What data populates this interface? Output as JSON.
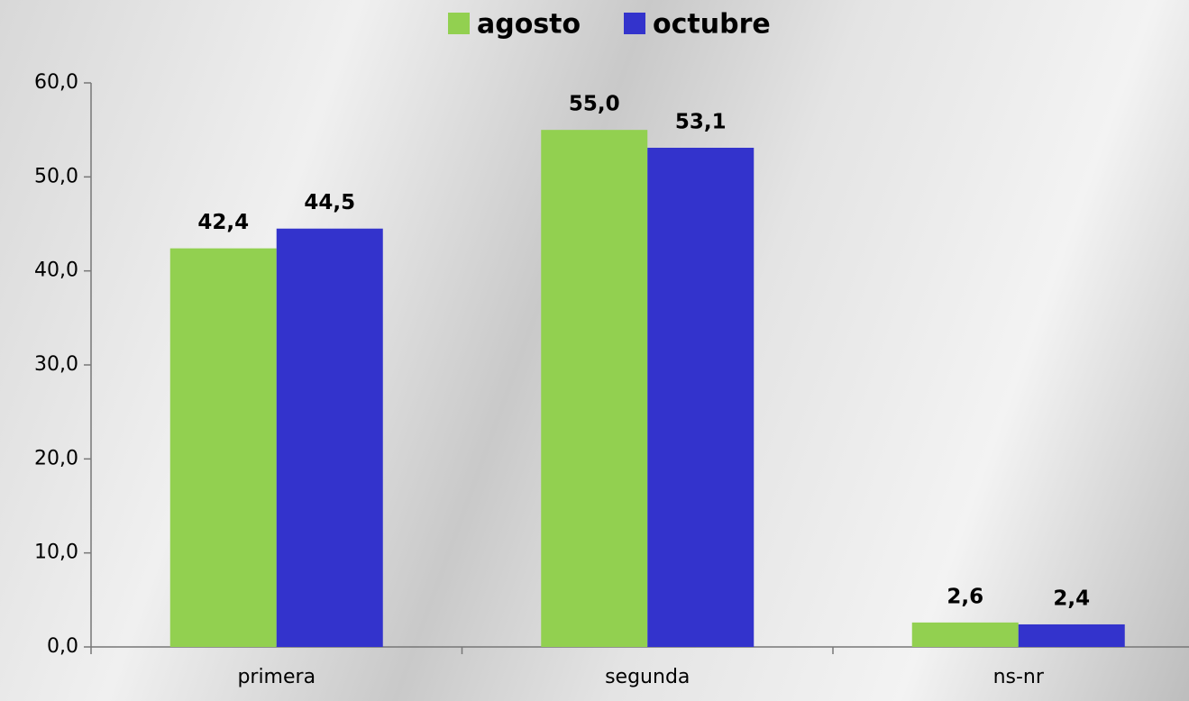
{
  "chart_data": {
    "type": "bar",
    "categories": [
      "primera",
      "segunda",
      "ns-nr"
    ],
    "series": [
      {
        "name": "agosto",
        "color": "#92d050",
        "values": [
          42.4,
          55.0,
          2.6
        ],
        "value_labels": [
          "42,4",
          "55,0",
          "2,6"
        ]
      },
      {
        "name": "octubre",
        "color": "#3333cc",
        "values": [
          44.5,
          53.1,
          2.4
        ],
        "value_labels": [
          "44,5",
          "53,1",
          "2,4"
        ]
      }
    ],
    "ylim": [
      0,
      60
    ],
    "yticks": [
      {
        "value": 0,
        "label": "0,0"
      },
      {
        "value": 10,
        "label": "10,0"
      },
      {
        "value": 20,
        "label": "20,0"
      },
      {
        "value": 30,
        "label": "30,0"
      },
      {
        "value": 40,
        "label": "40,0"
      },
      {
        "value": 50,
        "label": "50,0"
      },
      {
        "value": 60,
        "label": "60,0"
      }
    ],
    "legend": "top"
  }
}
